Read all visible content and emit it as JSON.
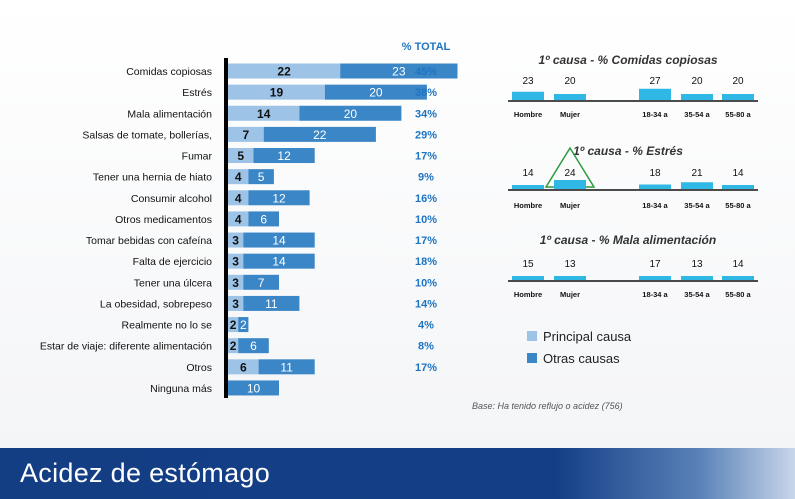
{
  "page_title": "Acidez de estómago",
  "base_note": "Base: Ha tenido reflujo o acidez (756)",
  "legend": {
    "principal": {
      "label": "Principal causa",
      "color": "#9dc3e6"
    },
    "otras": {
      "label": "Otras causas",
      "color": "#3a86c6"
    }
  },
  "colors": {
    "total_text": "#1f74c2",
    "axis": "#000000",
    "segment_bar": "#2fb7e6",
    "triangle": "#2d9a3e"
  },
  "chart_data": [
    {
      "type": "bar",
      "orientation": "horizontal",
      "stacked": true,
      "total_header": "% TOTAL",
      "categories": [
        "Comidas copiosas",
        "Estrés",
        "Mala alimentación",
        "Salsas de tomate, bollerías,",
        "Fumar",
        "Tener una hernia de hiato",
        "Consumir alcohol",
        "Otros medicamentos",
        "Tomar bebidas con cafeína",
        "Falta de ejercicio",
        "Tener una úlcera",
        "La obesidad, sobrepeso",
        "Realmente no lo se",
        "Estar de viaje: diferente alimentación",
        "Otros",
        "Ninguna más"
      ],
      "series": [
        {
          "name": "Principal causa",
          "values": [
            22,
            19,
            14,
            7,
            5,
            4,
            4,
            4,
            3,
            3,
            3,
            3,
            2,
            2,
            6,
            null
          ]
        },
        {
          "name": "Otras causas",
          "values": [
            23,
            20,
            20,
            22,
            12,
            5,
            12,
            6,
            14,
            14,
            7,
            11,
            2,
            6,
            11,
            10
          ]
        }
      ],
      "totals": [
        "45%",
        "38%",
        "34%",
        "29%",
        "17%",
        "9%",
        "16%",
        "10%",
        "17%",
        "18%",
        "10%",
        "14%",
        "4%",
        "8%",
        "17%",
        ""
      ]
    },
    {
      "type": "bar",
      "title": "1º causa - % Comidas copiosas",
      "categories": [
        "Hombre",
        "Mujer",
        "18-34 a",
        "35-54 a",
        "55-80 a"
      ],
      "values": [
        23,
        20,
        27,
        20,
        20
      ],
      "highlight": null
    },
    {
      "type": "bar",
      "title": "1º causa - % Estrés",
      "categories": [
        "Hombre",
        "Mujer",
        "18-34 a",
        "35-54 a",
        "55-80 a"
      ],
      "values": [
        14,
        24,
        18,
        21,
        14
      ],
      "highlight": "Mujer"
    },
    {
      "type": "bar",
      "title": "1º causa - % Mala alimentación",
      "categories": [
        "Hombre",
        "Mujer",
        "18-34 a",
        "35-54 a",
        "55-80 a"
      ],
      "values": [
        15,
        13,
        17,
        13,
        14
      ],
      "highlight": null
    }
  ]
}
